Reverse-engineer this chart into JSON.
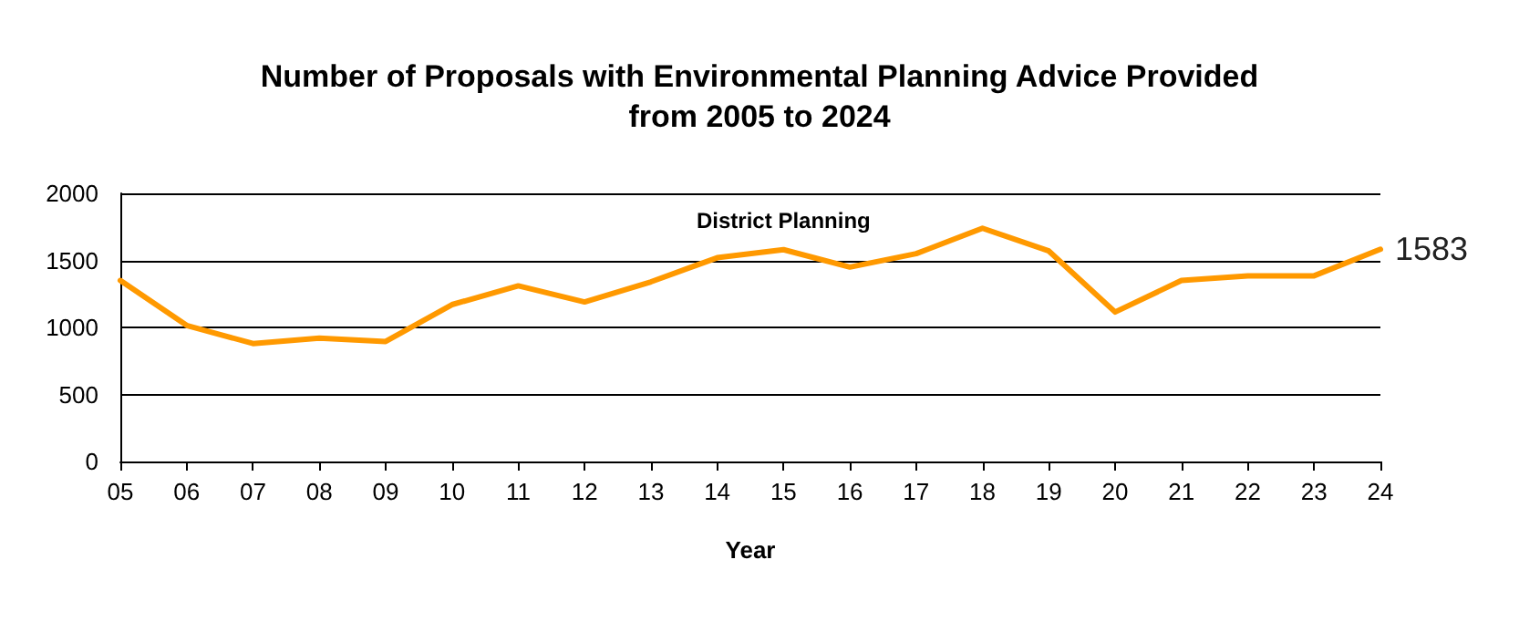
{
  "chart_data": {
    "type": "line",
    "title": "Number of Proposals with Environmental Planning Advice Provided\nfrom 2005 to 2024",
    "xlabel": "Year",
    "categories": [
      "05",
      "06",
      "07",
      "08",
      "09",
      "10",
      "11",
      "12",
      "13",
      "14",
      "15",
      "16",
      "17",
      "18",
      "19",
      "20",
      "21",
      "22",
      "23",
      "24"
    ],
    "series": [
      {
        "name": "District Planning",
        "color": "#ff9900",
        "values": [
          1350,
          1015,
          880,
          920,
          895,
          1170,
          1310,
          1190,
          1340,
          1520,
          1580,
          1450,
          1550,
          1740,
          1570,
          1115,
          1350,
          1385,
          1385,
          1583
        ],
        "value_labels": [
          null,
          null,
          null,
          null,
          null,
          null,
          null,
          null,
          null,
          null,
          null,
          null,
          null,
          null,
          null,
          null,
          null,
          null,
          null,
          "1583"
        ]
      }
    ],
    "ylim": [
      0,
      2000
    ],
    "yticks": [
      0,
      500,
      1000,
      1500,
      2000
    ],
    "grid": "y",
    "legend": false,
    "marker": "none",
    "line_style": "solid"
  }
}
